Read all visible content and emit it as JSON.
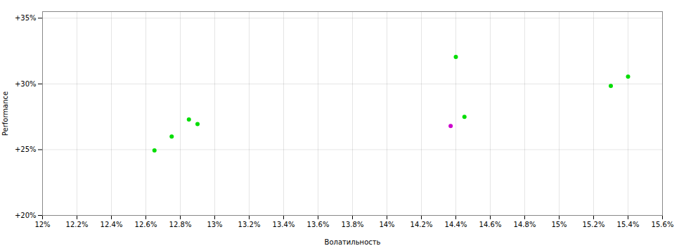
{
  "chart_data": {
    "type": "scatter",
    "xlabel": "Волатильность",
    "ylabel": "Performance",
    "xlim": [
      0.12,
      0.156
    ],
    "ylim": [
      0.2,
      0.355
    ],
    "xticks": [
      {
        "value": 0.12,
        "label": "12%"
      },
      {
        "value": 0.122,
        "label": "12.2%"
      },
      {
        "value": 0.124,
        "label": "12.4%"
      },
      {
        "value": 0.126,
        "label": "12.6%"
      },
      {
        "value": 0.128,
        "label": "12.8%"
      },
      {
        "value": 0.13,
        "label": "13%"
      },
      {
        "value": 0.132,
        "label": "13.2%"
      },
      {
        "value": 0.134,
        "label": "13.4%"
      },
      {
        "value": 0.136,
        "label": "13.6%"
      },
      {
        "value": 0.138,
        "label": "13.8%"
      },
      {
        "value": 0.14,
        "label": "14%"
      },
      {
        "value": 0.142,
        "label": "14.2%"
      },
      {
        "value": 0.144,
        "label": "14.4%"
      },
      {
        "value": 0.146,
        "label": "14.6%"
      },
      {
        "value": 0.148,
        "label": "14.8%"
      },
      {
        "value": 0.15,
        "label": "15%"
      },
      {
        "value": 0.152,
        "label": "15.2%"
      },
      {
        "value": 0.154,
        "label": "15.4%"
      },
      {
        "value": 0.156,
        "label": "15.6%"
      }
    ],
    "yticks": [
      {
        "value": 0.2,
        "label": "+20%"
      },
      {
        "value": 0.25,
        "label": "+25%"
      },
      {
        "value": 0.3,
        "label": "+30%"
      },
      {
        "value": 0.35,
        "label": "+35%"
      }
    ],
    "grid": true,
    "series": [
      {
        "color": "#00dd00",
        "x": [
          0.1265,
          0.1275,
          0.1285,
          0.129,
          0.144,
          0.1445,
          0.153,
          0.154
        ],
        "values": [
          0.2495,
          0.26,
          0.273,
          0.2695,
          0.3205,
          0.275,
          0.2985,
          0.3055
        ]
      },
      {
        "color": "#cc00cc",
        "x": [
          0.1437
        ],
        "values": [
          0.268
        ]
      }
    ]
  }
}
